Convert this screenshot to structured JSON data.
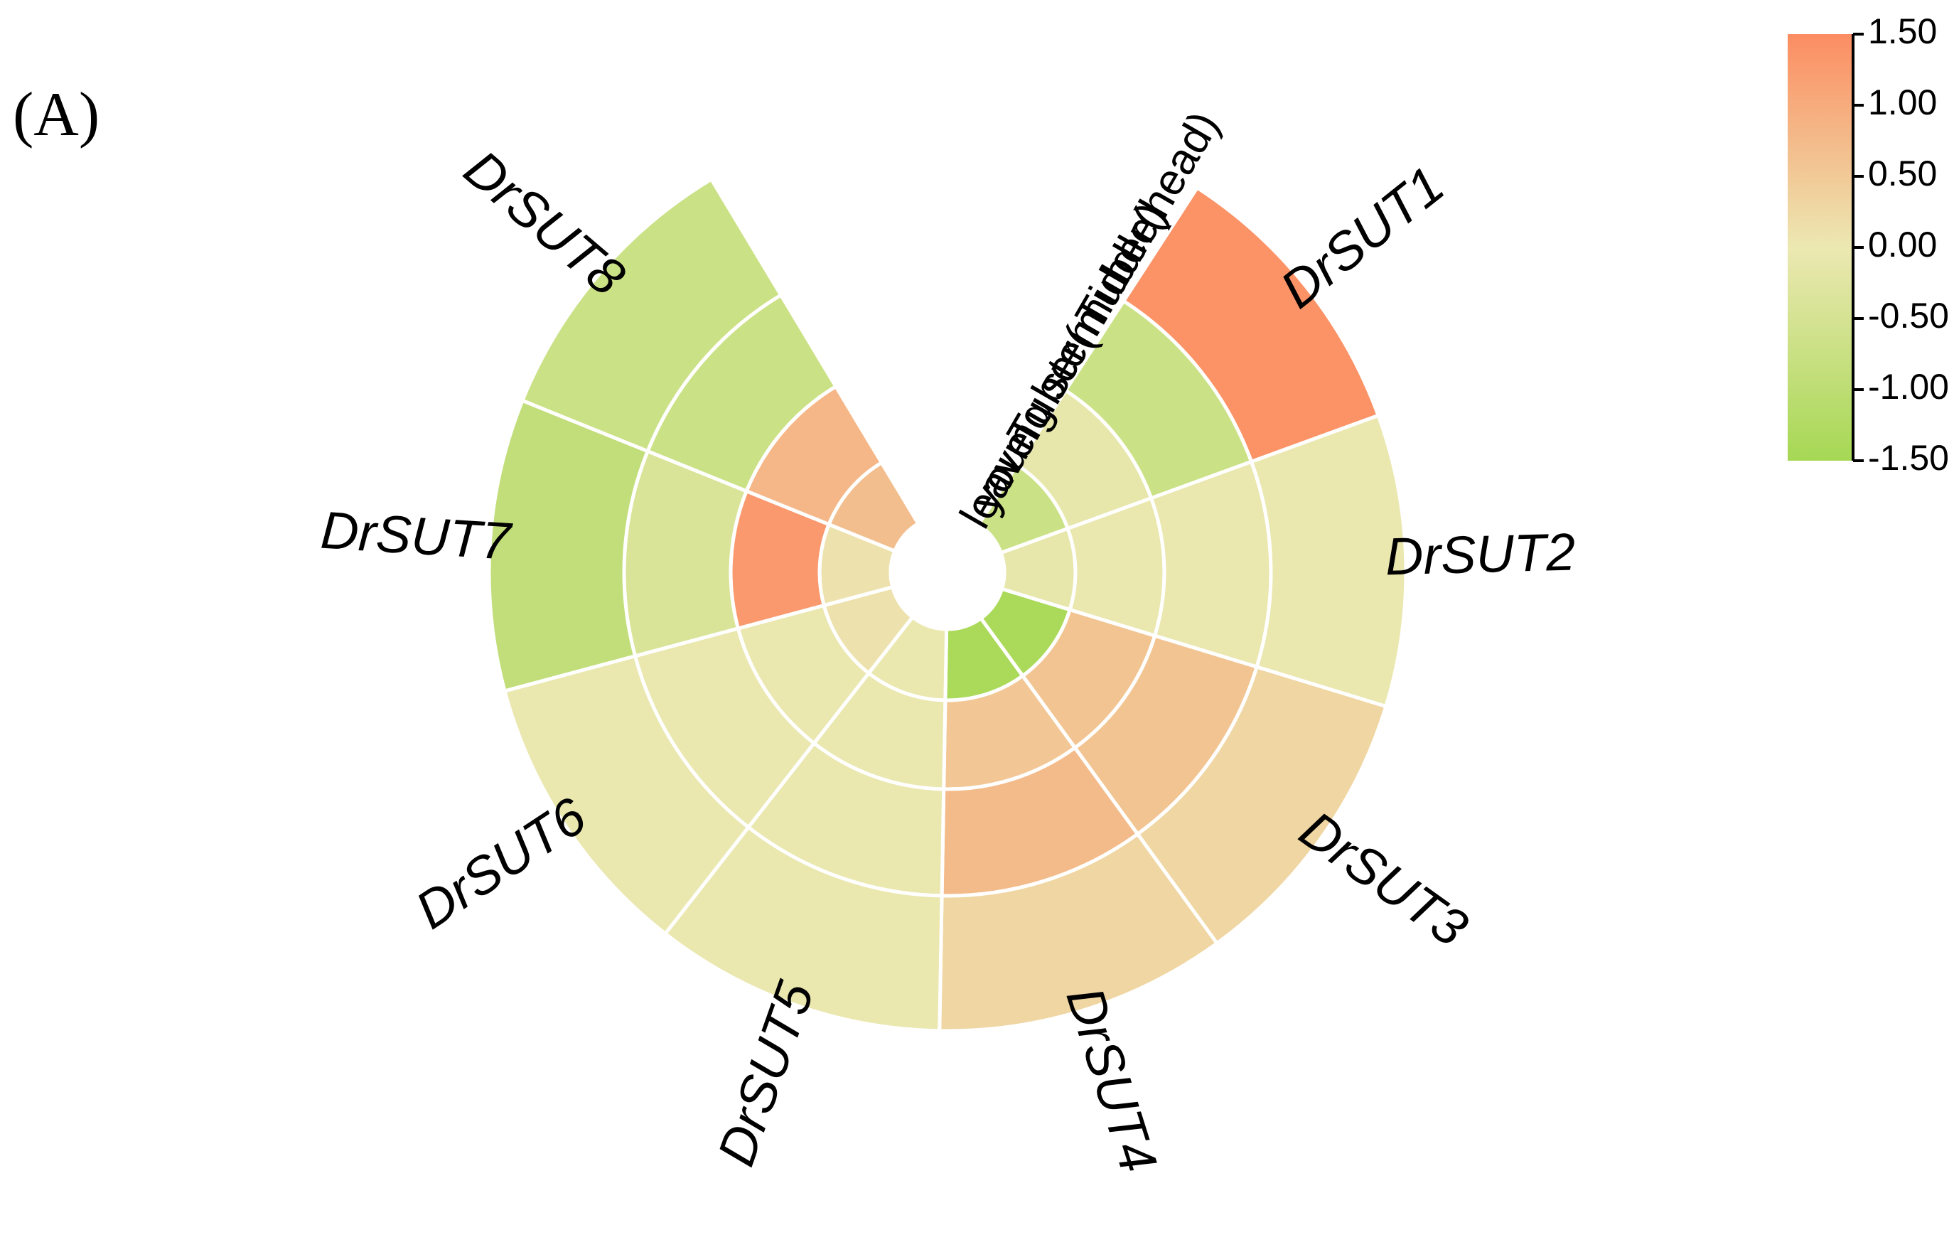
{
  "panel_label": "(A)",
  "chart_data": {
    "type": "heatmap",
    "layout": "radial",
    "genes": [
      "DrSUT1",
      "DrSUT2",
      "DrSUT3",
      "DrSUT4",
      "DrSUT5",
      "DrSUT6",
      "DrSUT7",
      "DrSUT8"
    ],
    "tissues": [
      "leave",
      "young stem",
      "Tuber(middle)",
      "Tuber(head)"
    ],
    "values": [
      [
        -0.7,
        -0.1,
        -0.7,
        1.4
      ],
      [
        -0.1,
        -0.05,
        -0.05,
        -0.05
      ],
      [
        -1.4,
        0.6,
        0.6,
        0.3
      ],
      [
        -1.4,
        0.55,
        0.75,
        0.3
      ],
      [
        -0.05,
        -0.05,
        -0.05,
        -0.05
      ],
      [
        0.1,
        -0.05,
        -0.05,
        -0.05
      ],
      [
        0.1,
        1.3,
        -0.4,
        -0.9
      ],
      [
        0.7,
        0.8,
        -0.7,
        -0.7
      ]
    ],
    "colorbar": {
      "min": -1.5,
      "max": 1.5,
      "ticks": [
        "1.50",
        "1.00",
        "0.50",
        "0.00",
        "-0.50",
        "-1.00",
        "-1.50"
      ],
      "colors": {
        "low": "#a6d854",
        "mid": "#ece8b2",
        "high": "#fc8d62"
      }
    }
  }
}
